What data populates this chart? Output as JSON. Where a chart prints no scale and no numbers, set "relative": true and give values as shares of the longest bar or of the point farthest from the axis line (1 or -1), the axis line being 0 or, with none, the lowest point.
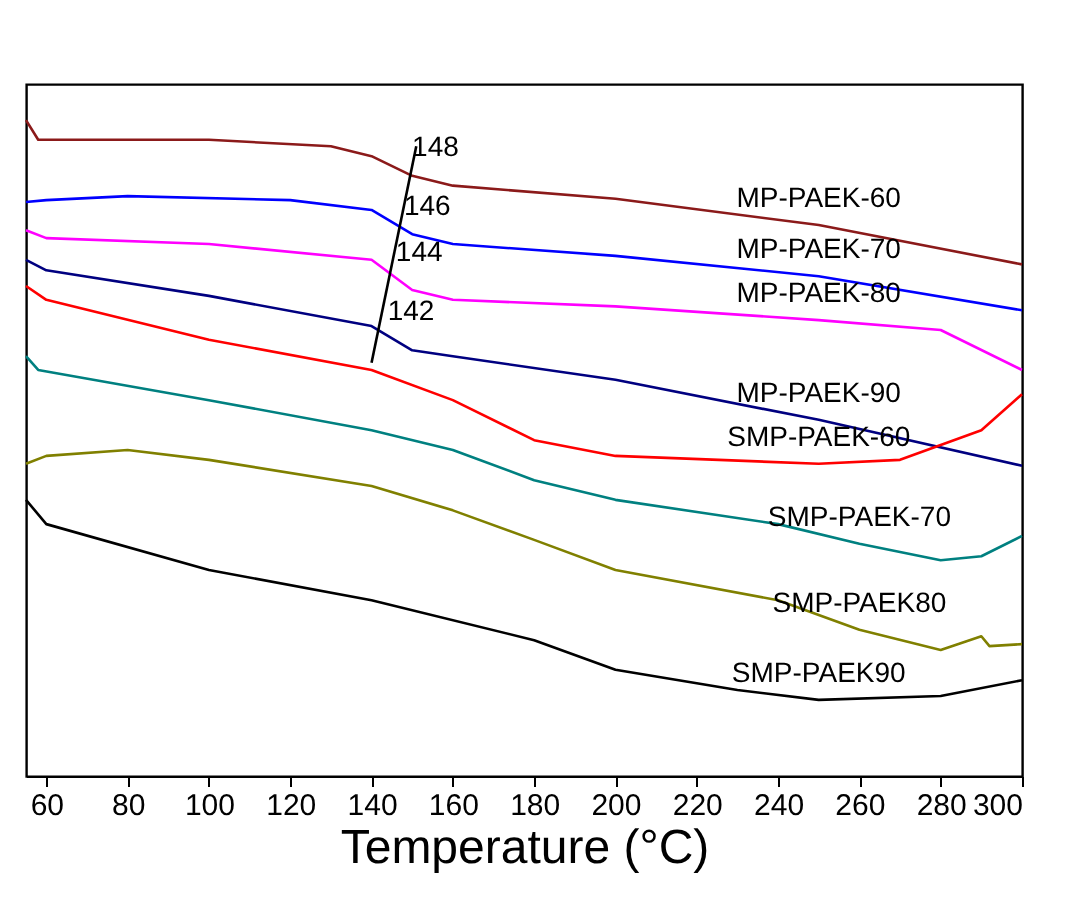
{
  "chart_data": {
    "type": "line",
    "relative": true,
    "xlabel": "Temperature (°C)",
    "xlim": [
      55,
      300
    ],
    "xticks": [
      60,
      80,
      100,
      120,
      140,
      160,
      180,
      200,
      220,
      240,
      260,
      280,
      300
    ],
    "grid": false,
    "marker": "none",
    "line_style": "solid",
    "series": [
      {
        "name": "MP-PAEK-60",
        "color": "#8b1a1a",
        "x": [
          55,
          58,
          100,
          130,
          140,
          150,
          160,
          200,
          250,
          300
        ],
        "values": [
          1.0,
          0.97,
          0.97,
          0.96,
          0.945,
          0.915,
          0.9,
          0.88,
          0.84,
          0.78
        ]
      },
      {
        "name": "MP-PAEK-70",
        "color": "#0000ff",
        "x": [
          55,
          60,
          80,
          120,
          140,
          150,
          160,
          200,
          250,
          300
        ],
        "values": [
          0.875,
          0.878,
          0.884,
          0.878,
          0.863,
          0.826,
          0.811,
          0.793,
          0.762,
          0.71
        ]
      },
      {
        "name": "MP-PAEK-80",
        "color": "#ff00ff",
        "x": [
          55,
          60,
          100,
          140,
          150,
          160,
          200,
          250,
          280,
          300
        ],
        "values": [
          0.832,
          0.82,
          0.811,
          0.787,
          0.741,
          0.726,
          0.716,
          0.695,
          0.68,
          0.619
        ]
      },
      {
        "name": "MP-PAEK-90",
        "color": "#000080",
        "x": [
          55,
          60,
          100,
          140,
          150,
          160,
          200,
          250,
          300
        ],
        "values": [
          0.787,
          0.771,
          0.732,
          0.686,
          0.649,
          0.64,
          0.604,
          0.543,
          0.473
        ]
      },
      {
        "name": "SMP-PAEK-60",
        "color": "#ff0000",
        "x": [
          55,
          60,
          100,
          140,
          160,
          180,
          200,
          250,
          270,
          290,
          300
        ],
        "values": [
          0.747,
          0.726,
          0.665,
          0.619,
          0.573,
          0.512,
          0.488,
          0.476,
          0.482,
          0.527,
          0.582
        ]
      },
      {
        "name": "SMP-PAEK-70",
        "color": "#008080",
        "x": [
          55,
          58,
          100,
          140,
          160,
          180,
          200,
          240,
          260,
          280,
          290,
          300
        ],
        "values": [
          0.64,
          0.619,
          0.573,
          0.527,
          0.497,
          0.451,
          0.421,
          0.384,
          0.354,
          0.329,
          0.335,
          0.366
        ]
      },
      {
        "name": "SMP-PAEK80",
        "color": "#808000",
        "x": [
          55,
          60,
          80,
          100,
          140,
          160,
          180,
          200,
          240,
          260,
          280,
          290,
          292,
          300
        ],
        "values": [
          0.476,
          0.488,
          0.497,
          0.482,
          0.442,
          0.405,
          0.36,
          0.314,
          0.268,
          0.223,
          0.192,
          0.213,
          0.198,
          0.201
        ]
      },
      {
        "name": "SMP-PAEK90",
        "color": "#000000",
        "x": [
          55,
          60,
          100,
          140,
          180,
          200,
          230,
          250,
          280,
          300
        ],
        "values": [
          0.421,
          0.384,
          0.314,
          0.268,
          0.207,
          0.162,
          0.131,
          0.116,
          0.122,
          0.146
        ]
      },
      {
        "type": "line",
        "color": "#000000",
        "x": [
          140,
          151
        ],
        "values": [
          0.63,
          0.96
        ]
      }
    ],
    "annotations": [
      {
        "text": "148",
        "x": 148,
        "y": 0.93
      },
      {
        "text": "146",
        "x": 146,
        "y": 0.84
      },
      {
        "text": "144",
        "x": 144,
        "y": 0.77
      },
      {
        "text": "142",
        "x": 142,
        "y": 0.68
      }
    ]
  }
}
